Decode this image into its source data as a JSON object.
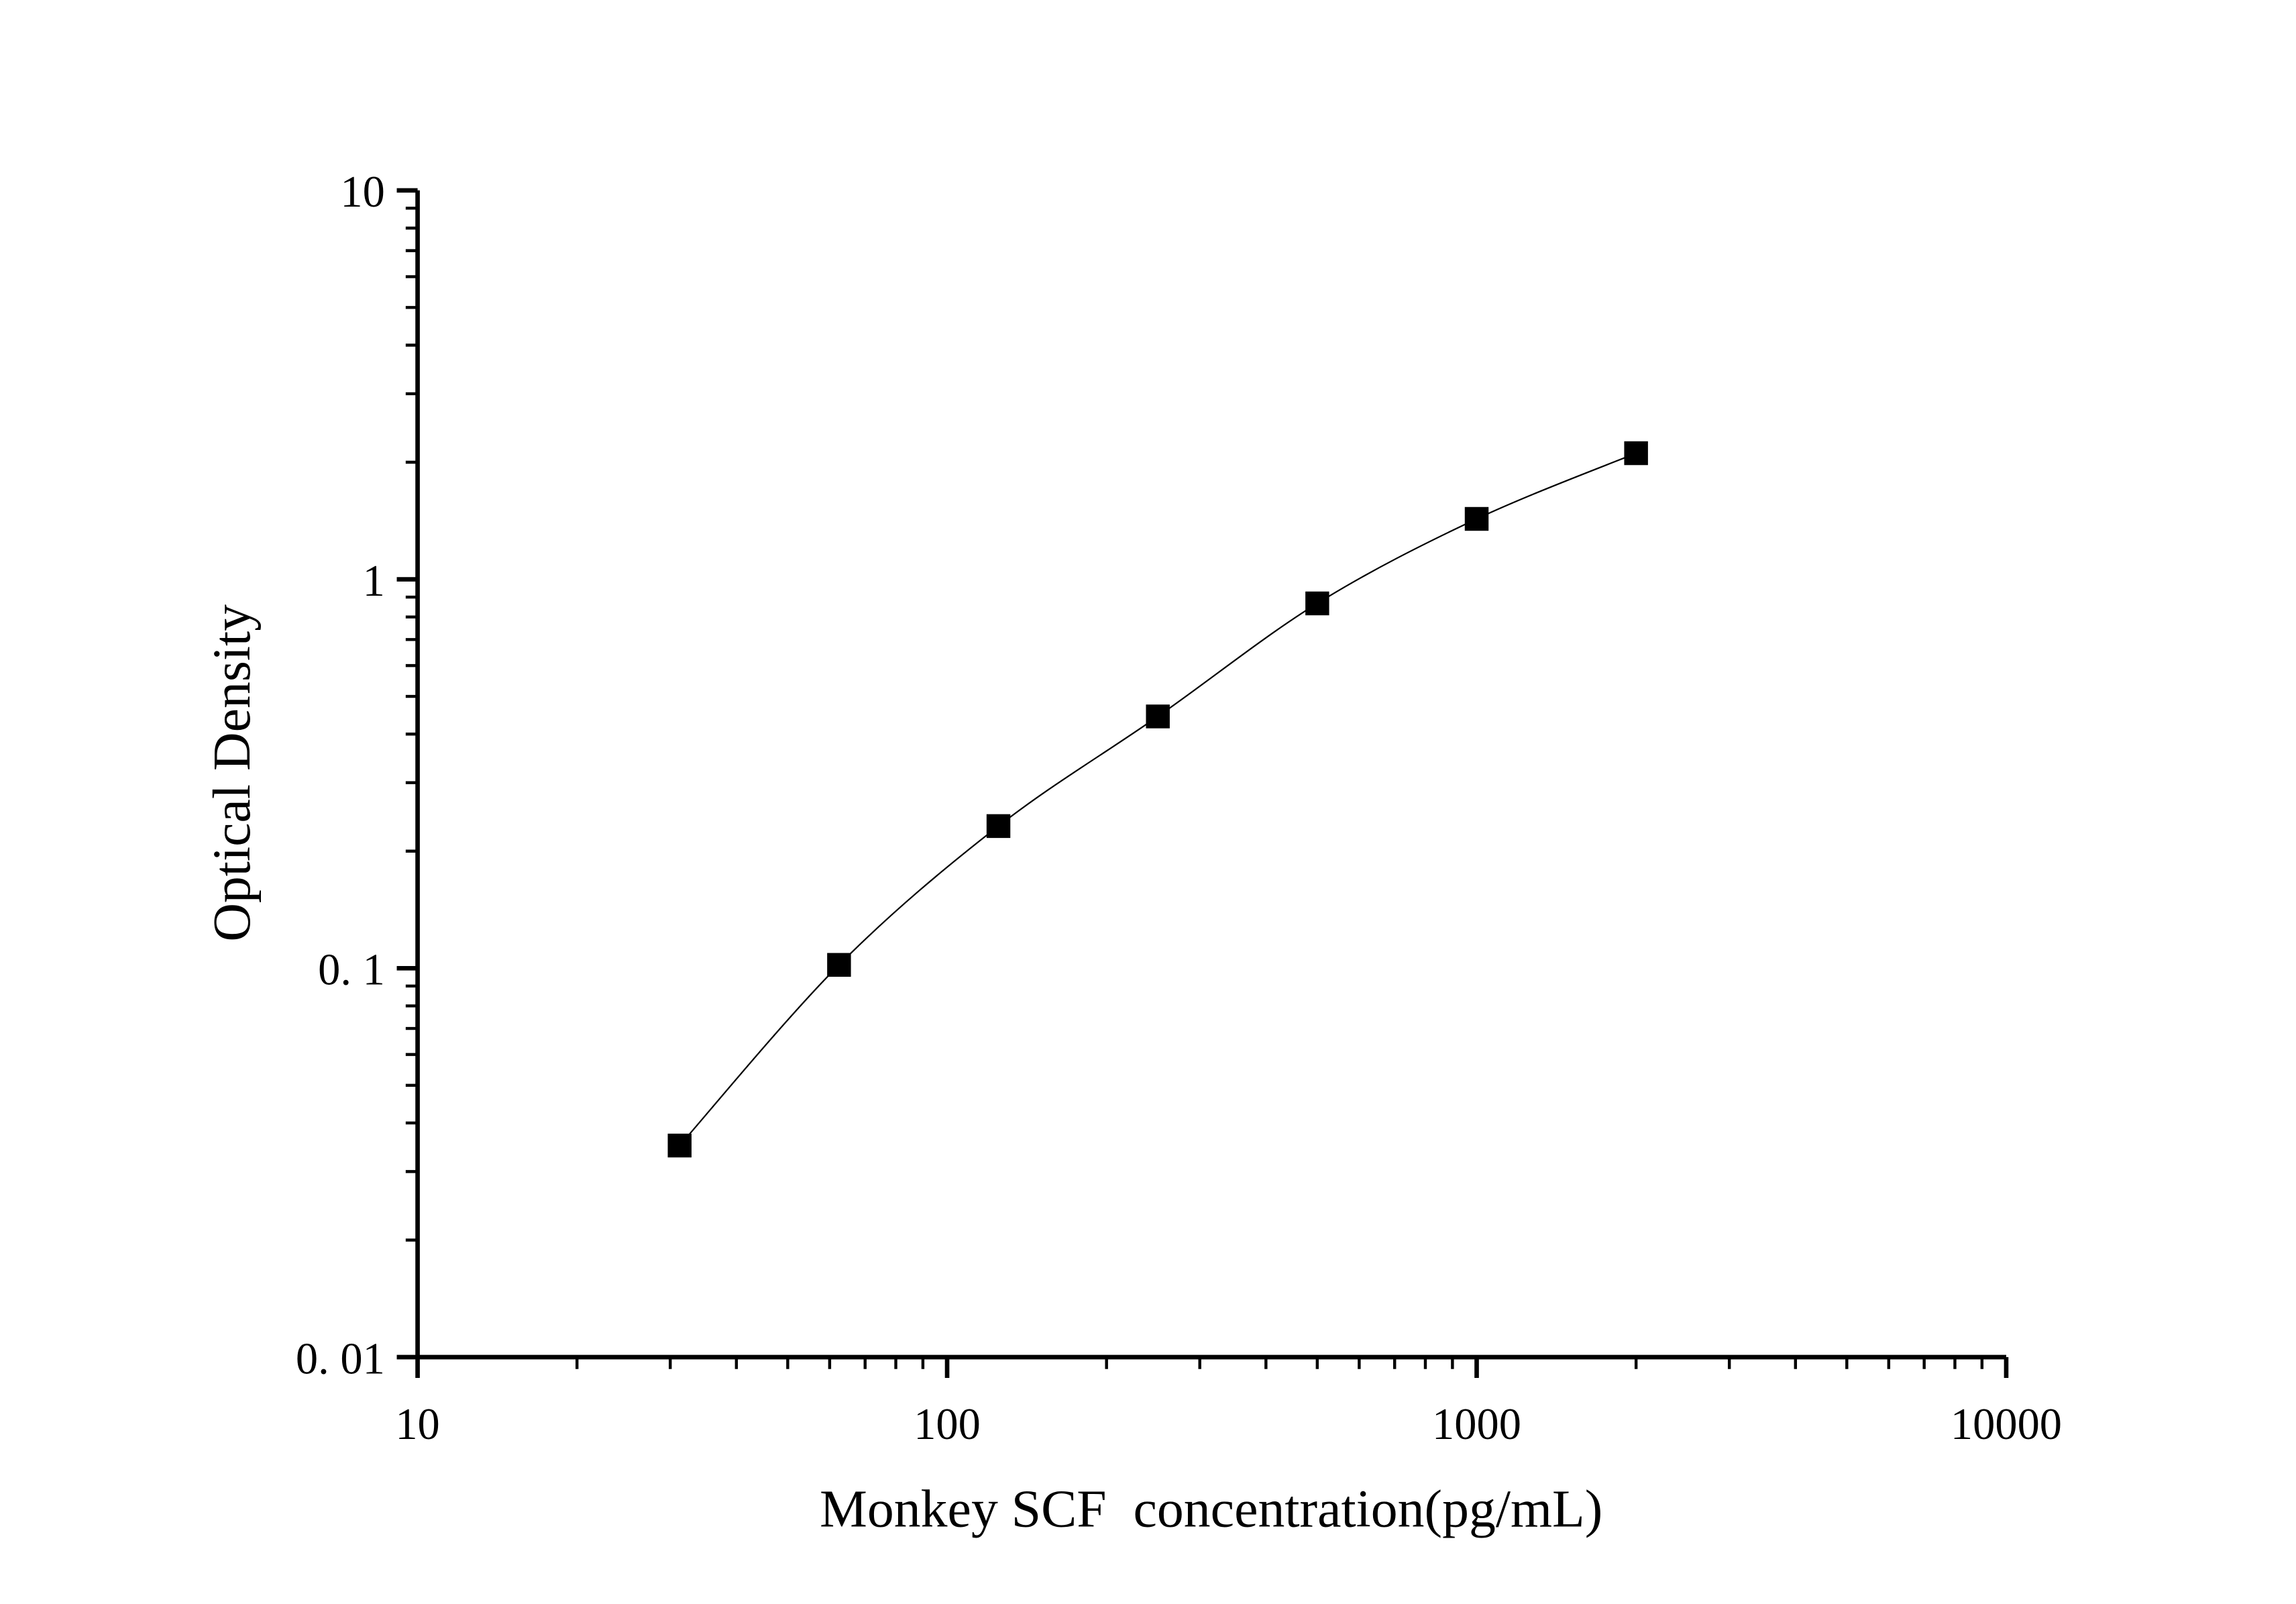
{
  "chart_data": {
    "type": "scatter",
    "title": "",
    "xlabel": "Monkey SCF  concentration(pg/mL)",
    "ylabel": "Optical Density",
    "xscale": "log",
    "yscale": "log",
    "xlim": [
      10,
      10000
    ],
    "ylim": [
      0.01,
      10
    ],
    "xticks": [
      10,
      100,
      1000,
      10000
    ],
    "xtick_labels": [
      "10",
      "100",
      "1000",
      "10000"
    ],
    "yticks": [
      0.01,
      0.1,
      1,
      10
    ],
    "ytick_labels": [
      "0. 01",
      "0. 1",
      "1",
      "10"
    ],
    "grid": false,
    "marker": "square",
    "fit_curve": true,
    "color": "#000000",
    "x": [
      31.25,
      62.5,
      125,
      250,
      500,
      1000,
      2000
    ],
    "y": [
      0.035,
      0.102,
      0.232,
      0.444,
      0.867,
      1.43,
      2.11
    ]
  }
}
